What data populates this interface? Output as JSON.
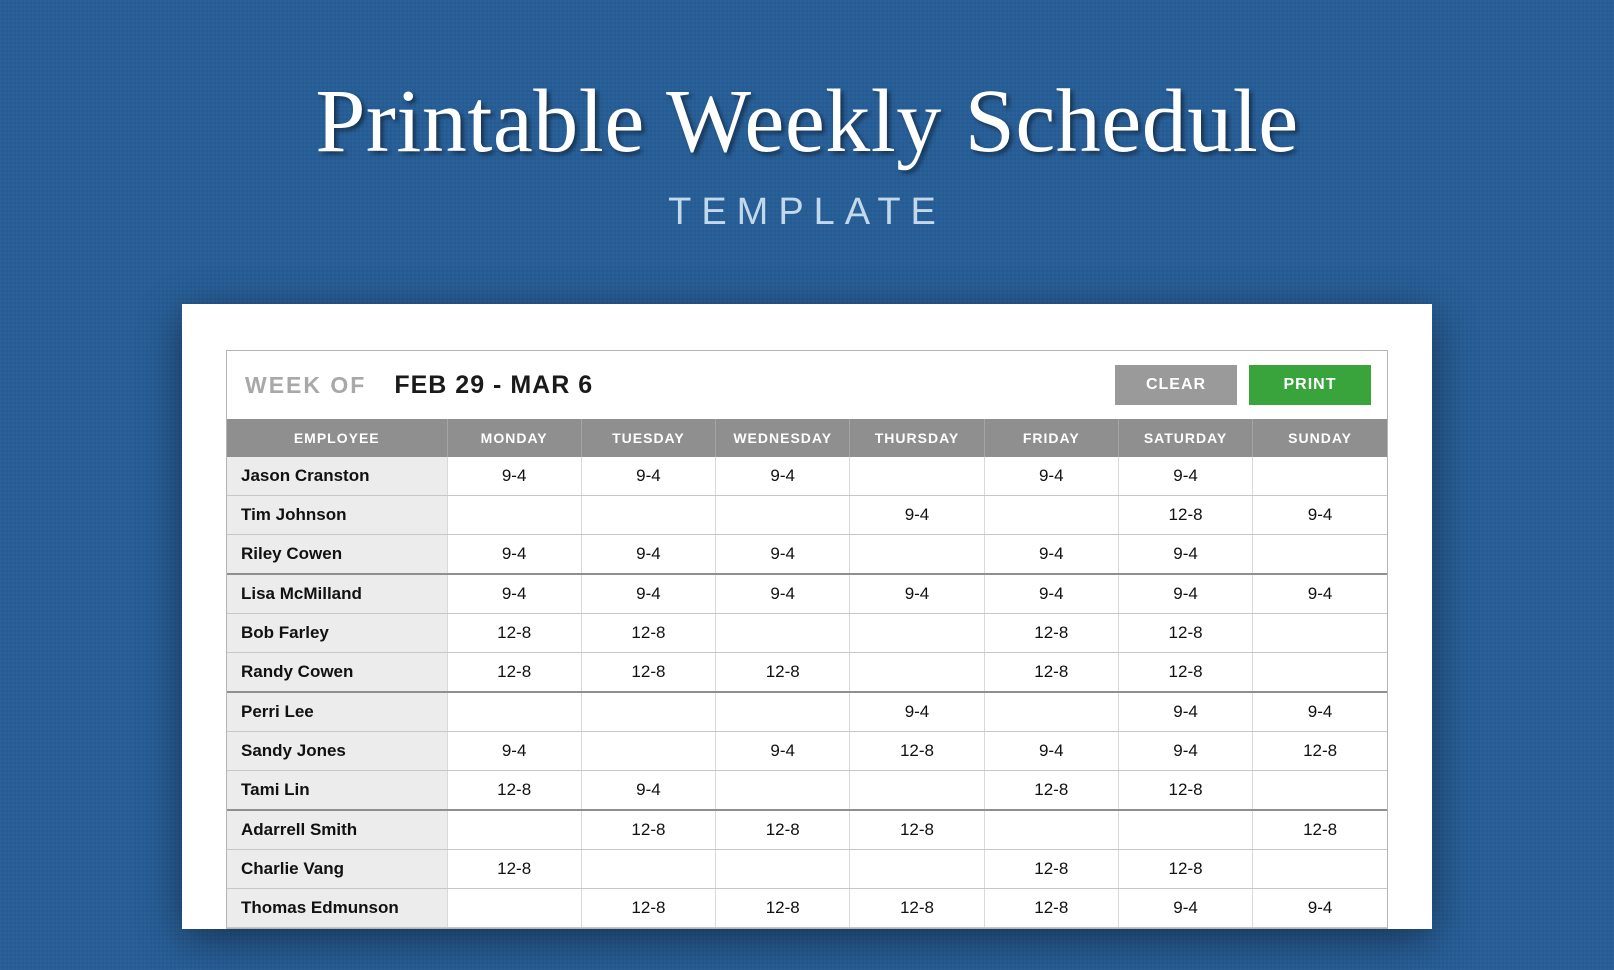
{
  "hero": {
    "title": "Printable Weekly Schedule",
    "subtitle": "TEMPLATE"
  },
  "colors": {
    "page_bg": "#245b94",
    "sheet_bg": "#ffffff",
    "header_row_bg": "#8f8f8f",
    "header_row_text": "#ffffff",
    "employee_col_bg": "#ececec",
    "grid_line": "#c7c7c7",
    "btn_clear_bg": "#9a9a9a",
    "btn_print_bg": "#39a33c",
    "week_of_color": "#a8a8a8"
  },
  "toolbar": {
    "week_of_label": "WEEK OF",
    "week_range": "FEB 29 - MAR 6",
    "clear_label": "CLEAR",
    "print_label": "PRINT"
  },
  "table": {
    "columns": [
      "EMPLOYEE",
      "MONDAY",
      "TUESDAY",
      "WEDNESDAY",
      "THURSDAY",
      "FRIDAY",
      "SATURDAY",
      "SUNDAY"
    ],
    "separators_after_row_index": [
      3,
      6,
      9
    ],
    "rows": [
      {
        "employee": "Jason Cranston",
        "cells": [
          "9-4",
          "9-4",
          "9-4",
          "",
          "9-4",
          "9-4",
          ""
        ]
      },
      {
        "employee": "Tim Johnson",
        "cells": [
          "",
          "",
          "",
          "9-4",
          "",
          "12-8",
          "9-4"
        ]
      },
      {
        "employee": "Riley Cowen",
        "cells": [
          "9-4",
          "9-4",
          "9-4",
          "",
          "9-4",
          "9-4",
          ""
        ]
      },
      {
        "employee": "Lisa McMilland",
        "cells": [
          "9-4",
          "9-4",
          "9-4",
          "9-4",
          "9-4",
          "9-4",
          "9-4"
        ]
      },
      {
        "employee": "Bob Farley",
        "cells": [
          "12-8",
          "12-8",
          "",
          "",
          "12-8",
          "12-8",
          ""
        ]
      },
      {
        "employee": "Randy Cowen",
        "cells": [
          "12-8",
          "12-8",
          "12-8",
          "",
          "12-8",
          "12-8",
          ""
        ]
      },
      {
        "employee": "Perri Lee",
        "cells": [
          "",
          "",
          "",
          "9-4",
          "",
          "9-4",
          "9-4"
        ]
      },
      {
        "employee": "Sandy Jones",
        "cells": [
          "9-4",
          "",
          "9-4",
          "12-8",
          "9-4",
          "9-4",
          "12-8"
        ]
      },
      {
        "employee": "Tami Lin",
        "cells": [
          "12-8",
          "9-4",
          "",
          "",
          "12-8",
          "12-8",
          ""
        ]
      },
      {
        "employee": "Adarrell Smith",
        "cells": [
          "",
          "12-8",
          "12-8",
          "12-8",
          "",
          "",
          "12-8"
        ]
      },
      {
        "employee": "Charlie Vang",
        "cells": [
          "12-8",
          "",
          "",
          "",
          "12-8",
          "12-8",
          ""
        ]
      },
      {
        "employee": "Thomas Edmunson",
        "cells": [
          "",
          "12-8",
          "12-8",
          "12-8",
          "12-8",
          "9-4",
          "9-4"
        ]
      }
    ]
  }
}
